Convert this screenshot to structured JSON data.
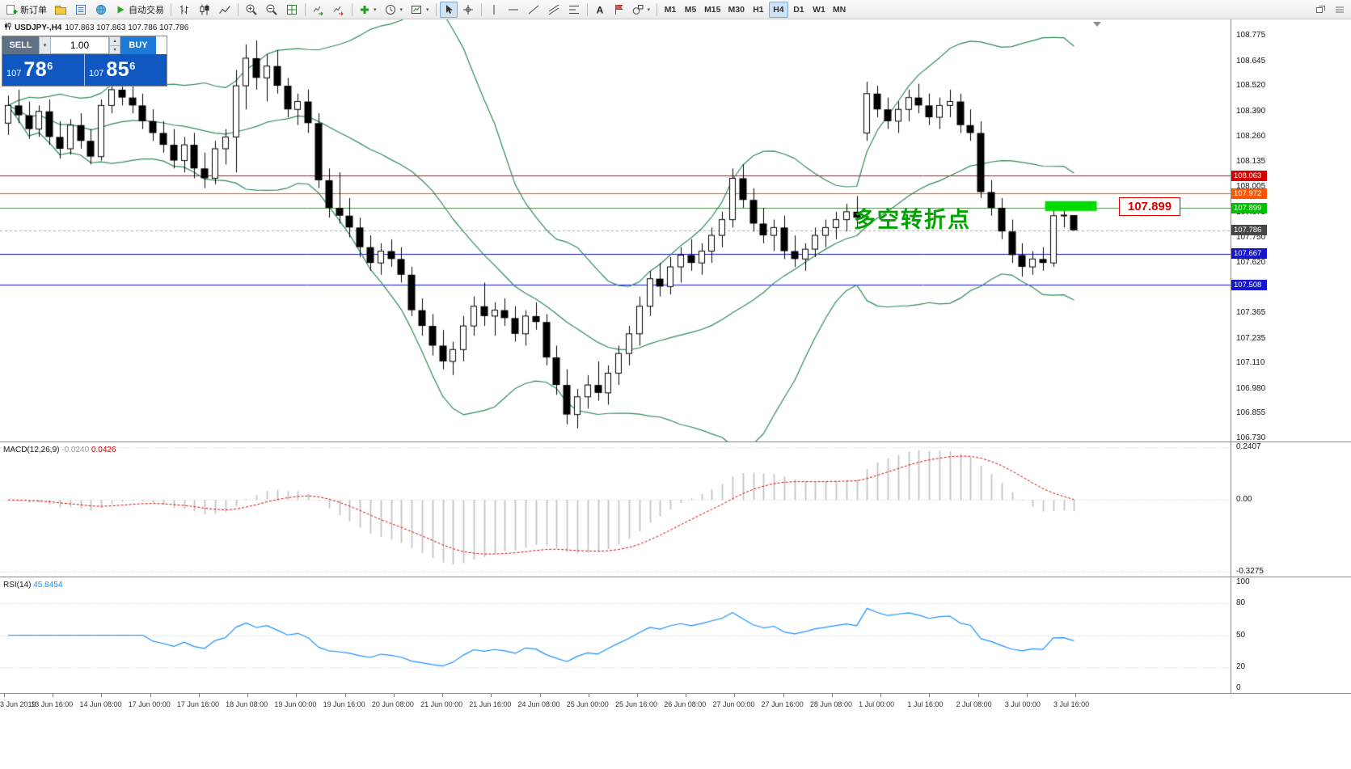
{
  "toolbar": {
    "new_order_label": "新订单",
    "autotrading_label": "自动交易",
    "dropdown_glyph": "▾",
    "spin_up_glyph": "▴",
    "spin_down_glyph": "▾",
    "timeframes": [
      "M1",
      "M5",
      "M15",
      "M30",
      "H1",
      "H4",
      "D1",
      "W1",
      "MN"
    ],
    "active_timeframe": "H4"
  },
  "chart": {
    "symbol_label": "USDJPY-,H4",
    "ohlc_label": "107.863 107.863 107.786 107.786",
    "annotation": "多空转折点",
    "callout_price": "107.899"
  },
  "trade_panel": {
    "sell_label": "SELL",
    "buy_label": "BUY",
    "volume": "1.00",
    "sell_price_prefix": "107",
    "sell_price_big": "78",
    "sell_price_pip": "6",
    "buy_price_prefix": "107",
    "buy_price_big": "85",
    "buy_price_pip": "6"
  },
  "price_axis": {
    "ticks": [
      "108.775",
      "108.645",
      "108.520",
      "108.390",
      "108.260",
      "108.135",
      "108.005",
      "107.875",
      "107.750",
      "107.620",
      "107.495",
      "107.365",
      "107.235",
      "107.110",
      "106.980",
      "106.855",
      "106.730"
    ]
  },
  "macd": {
    "label": "MACD(12,26,9)",
    "value_main": "-0.0240",
    "value_signal": "0.0426",
    "axis": [
      "0.2407",
      "0.00",
      "-0.3275"
    ],
    "max": 0.2407,
    "min": -0.3275
  },
  "rsi": {
    "label": "RSI(14)",
    "value": "45.8454",
    "axis": [
      "100",
      "80",
      "50",
      "20",
      "0"
    ],
    "levels": [
      80,
      50,
      20
    ]
  },
  "time_axis": {
    "labels": [
      "3 Jun 2019",
      "13 Jun 16:00",
      "14 Jun 08:00",
      "17 Jun 00:00",
      "17 Jun 16:00",
      "18 Jun 08:00",
      "19 Jun 00:00",
      "19 Jun 16:00",
      "20 Jun 08:00",
      "21 Jun 00:00",
      "21 Jun 16:00",
      "24 Jun 08:00",
      "25 Jun 00:00",
      "25 Jun 16:00",
      "26 Jun 08:00",
      "27 Jun 00:00",
      "27 Jun 16:00",
      "28 Jun 08:00",
      "1 Jul 00:00",
      "1 Jul 16:00",
      "2 Jul 08:00",
      "3 Jul 00:00",
      "3 Jul 16:00"
    ]
  },
  "colors": {
    "bull": "#ffffff",
    "bear": "#000000",
    "wick": "#000000",
    "bollinger": "#2e8b57",
    "macd_hist": "#c0c0c0",
    "macd_signal": "#dd0000",
    "rsi_line": "#1e90ff",
    "annotation_green": "#00a400",
    "highlight_green": "#00dc00",
    "callout_red": "#dd0000"
  },
  "chart_data": {
    "type": "candlestick-ohlc",
    "symbol": "USDJPY-",
    "timeframe": "H4",
    "price_range": {
      "visible_max": 108.857,
      "visible_min": 106.713
    },
    "indicators": {
      "bollinger": {
        "period": 20,
        "deviation": 2
      },
      "macd": {
        "fast": 12,
        "slow": 26,
        "signal": 9
      },
      "rsi": {
        "period": 14
      }
    },
    "hlines": [
      {
        "price": 108.063,
        "label": "108.063",
        "color": "#d40000",
        "style": "solid"
      },
      {
        "price": 107.972,
        "label": "107.972",
        "color": "#ff5400",
        "style": "solid"
      },
      {
        "price": 107.899,
        "label": "107.899",
        "color": "#00c000",
        "style": "solid"
      },
      {
        "price": 107.786,
        "label": "107.786",
        "color": "#474747",
        "style": "dashed",
        "line_color": "#a6a6a6",
        "current": true
      },
      {
        "price": 107.667,
        "label": "107.667",
        "color": "#1616cc",
        "style": "solid"
      },
      {
        "price": 107.508,
        "label": "107.508",
        "color": "#1616cc",
        "style": "solid"
      }
    ],
    "highlight_box": {
      "from_index": 100.2,
      "to_index": 105.2,
      "price_top": 107.934,
      "price_bottom": 107.884
    },
    "candles": [
      [
        108.33,
        108.47,
        108.27,
        108.42
      ],
      [
        108.42,
        108.5,
        108.33,
        108.37
      ],
      [
        108.37,
        108.44,
        108.25,
        108.3
      ],
      [
        108.3,
        108.42,
        108.26,
        108.39
      ],
      [
        108.39,
        108.45,
        108.22,
        108.26
      ],
      [
        108.26,
        108.34,
        108.15,
        108.2
      ],
      [
        108.2,
        108.35,
        108.17,
        108.32
      ],
      [
        108.32,
        108.38,
        108.2,
        108.24
      ],
      [
        108.24,
        108.3,
        108.12,
        108.16
      ],
      [
        108.16,
        108.45,
        108.14,
        108.42
      ],
      [
        108.42,
        108.55,
        108.38,
        108.5
      ],
      [
        108.5,
        108.56,
        108.42,
        108.46
      ],
      [
        108.46,
        108.52,
        108.38,
        108.42
      ],
      [
        108.42,
        108.48,
        108.3,
        108.34
      ],
      [
        108.34,
        108.4,
        108.24,
        108.28
      ],
      [
        108.28,
        108.34,
        108.18,
        108.22
      ],
      [
        108.22,
        108.3,
        108.1,
        108.14
      ],
      [
        108.14,
        108.26,
        108.08,
        108.22
      ],
      [
        108.22,
        108.28,
        108.05,
        108.1
      ],
      [
        108.1,
        108.18,
        108.0,
        108.05
      ],
      [
        108.05,
        108.24,
        108.02,
        108.2
      ],
      [
        108.2,
        108.3,
        108.12,
        108.26
      ],
      [
        108.26,
        108.6,
        108.08,
        108.52
      ],
      [
        108.52,
        108.73,
        108.4,
        108.66
      ],
      [
        108.66,
        108.75,
        108.5,
        108.56
      ],
      [
        108.56,
        108.68,
        108.44,
        108.62
      ],
      [
        108.62,
        108.7,
        108.48,
        108.52
      ],
      [
        108.52,
        108.56,
        108.36,
        108.4
      ],
      [
        108.4,
        108.48,
        108.32,
        108.44
      ],
      [
        108.44,
        108.5,
        108.28,
        108.33
      ],
      [
        108.33,
        108.38,
        108.0,
        108.04
      ],
      [
        108.04,
        108.1,
        107.85,
        107.9
      ],
      [
        107.9,
        108.08,
        107.82,
        107.86
      ],
      [
        107.86,
        107.95,
        107.75,
        107.8
      ],
      [
        107.8,
        107.85,
        107.65,
        107.7
      ],
      [
        107.7,
        107.76,
        107.58,
        107.62
      ],
      [
        107.62,
        107.72,
        107.56,
        107.68
      ],
      [
        107.68,
        107.74,
        107.6,
        107.64
      ],
      [
        107.64,
        107.7,
        107.52,
        107.56
      ],
      [
        107.56,
        107.6,
        107.35,
        107.38
      ],
      [
        107.38,
        107.44,
        107.25,
        107.3
      ],
      [
        107.3,
        107.36,
        107.15,
        107.2
      ],
      [
        107.2,
        107.28,
        107.08,
        107.12
      ],
      [
        107.12,
        107.22,
        107.05,
        107.18
      ],
      [
        107.18,
        107.35,
        107.12,
        107.3
      ],
      [
        107.3,
        107.45,
        107.25,
        107.4
      ],
      [
        107.4,
        107.52,
        107.3,
        107.35
      ],
      [
        107.35,
        107.42,
        107.25,
        107.38
      ],
      [
        107.38,
        107.44,
        107.3,
        107.34
      ],
      [
        107.34,
        107.4,
        107.22,
        107.26
      ],
      [
        107.26,
        107.38,
        107.2,
        107.35
      ],
      [
        107.35,
        107.42,
        107.28,
        107.32
      ],
      [
        107.32,
        107.36,
        107.1,
        107.14
      ],
      [
        107.14,
        107.2,
        106.95,
        107.0
      ],
      [
        107.0,
        107.08,
        106.8,
        106.85
      ],
      [
        106.85,
        106.98,
        106.78,
        106.94
      ],
      [
        106.94,
        107.05,
        106.88,
        107.0
      ],
      [
        107.0,
        107.12,
        106.92,
        106.96
      ],
      [
        106.96,
        107.1,
        106.9,
        107.06
      ],
      [
        107.06,
        107.2,
        107.0,
        107.16
      ],
      [
        107.16,
        107.3,
        107.1,
        107.26
      ],
      [
        107.26,
        107.45,
        107.2,
        107.4
      ],
      [
        107.4,
        107.58,
        107.35,
        107.54
      ],
      [
        107.54,
        107.62,
        107.45,
        107.5
      ],
      [
        107.5,
        107.65,
        107.46,
        107.6
      ],
      [
        107.6,
        107.7,
        107.52,
        107.66
      ],
      [
        107.66,
        107.74,
        107.58,
        107.62
      ],
      [
        107.62,
        107.72,
        107.56,
        107.68
      ],
      [
        107.68,
        107.8,
        107.62,
        107.76
      ],
      [
        107.76,
        107.88,
        107.7,
        107.84
      ],
      [
        107.84,
        108.1,
        107.8,
        108.05
      ],
      [
        108.05,
        108.12,
        107.9,
        107.94
      ],
      [
        107.94,
        108.0,
        107.78,
        107.82
      ],
      [
        107.82,
        107.9,
        107.72,
        107.76
      ],
      [
        107.76,
        107.84,
        107.68,
        107.8
      ],
      [
        107.8,
        107.86,
        107.64,
        107.68
      ],
      [
        107.68,
        107.76,
        107.6,
        107.64
      ],
      [
        107.64,
        107.72,
        107.58,
        107.69
      ],
      [
        107.69,
        107.8,
        107.65,
        107.76
      ],
      [
        107.76,
        107.84,
        107.7,
        107.8
      ],
      [
        107.8,
        107.88,
        107.74,
        107.84
      ],
      [
        107.84,
        107.92,
        107.78,
        107.88
      ],
      [
        107.88,
        107.96,
        107.8,
        107.85
      ],
      [
        108.28,
        108.54,
        108.24,
        108.48
      ],
      [
        108.48,
        108.52,
        108.36,
        108.4
      ],
      [
        108.4,
        108.46,
        108.3,
        108.34
      ],
      [
        108.34,
        108.44,
        108.28,
        108.4
      ],
      [
        108.4,
        108.5,
        108.34,
        108.46
      ],
      [
        108.46,
        108.53,
        108.38,
        108.42
      ],
      [
        108.42,
        108.48,
        108.32,
        108.36
      ],
      [
        108.36,
        108.46,
        108.3,
        108.42
      ],
      [
        108.42,
        108.5,
        108.36,
        108.44
      ],
      [
        108.44,
        108.48,
        108.28,
        108.32
      ],
      [
        108.32,
        108.4,
        108.24,
        108.28
      ],
      [
        108.28,
        108.34,
        107.95,
        107.98
      ],
      [
        107.98,
        108.04,
        107.86,
        107.9
      ],
      [
        107.9,
        107.95,
        107.74,
        107.78
      ],
      [
        107.78,
        107.84,
        107.62,
        107.66
      ],
      [
        107.66,
        107.72,
        107.55,
        107.6
      ],
      [
        107.6,
        107.68,
        107.56,
        107.64
      ],
      [
        107.64,
        107.7,
        107.58,
        107.62
      ],
      [
        107.62,
        107.9,
        107.6,
        107.86
      ],
      [
        107.86,
        107.92,
        107.8,
        107.863
      ],
      [
        107.863,
        107.863,
        107.786,
        107.786
      ]
    ]
  }
}
